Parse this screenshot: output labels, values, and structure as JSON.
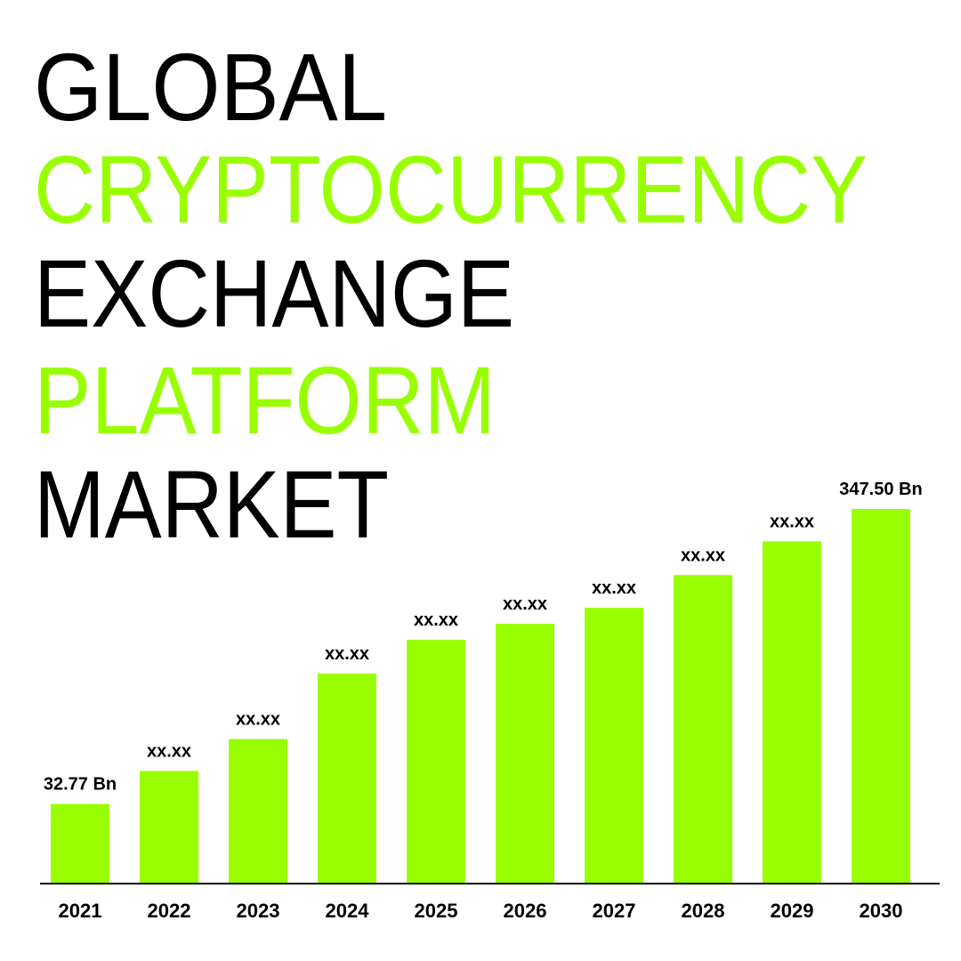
{
  "chart_data": {
    "type": "bar",
    "title_lines": [
      "GLOBAL",
      "CRYPTOCURRENCY",
      "EXCHANGE",
      "PLATFORM",
      "MARKET"
    ],
    "categories": [
      "2021",
      "2022",
      "2023",
      "2024",
      "2025",
      "2026",
      "2027",
      "2028",
      "2029",
      "2030"
    ],
    "values": [
      32.77,
      68,
      102,
      172,
      208,
      225,
      242,
      277,
      313,
      347.5
    ],
    "value_labels": [
      "32.77 Bn",
      "xx.xx",
      "xx.xx",
      "xx.xx",
      "xx.xx",
      "xx.xx",
      "xx.xx",
      "xx.xx",
      "xx.xx",
      "347.50 Bn"
    ],
    "color": "#99ff00"
  }
}
